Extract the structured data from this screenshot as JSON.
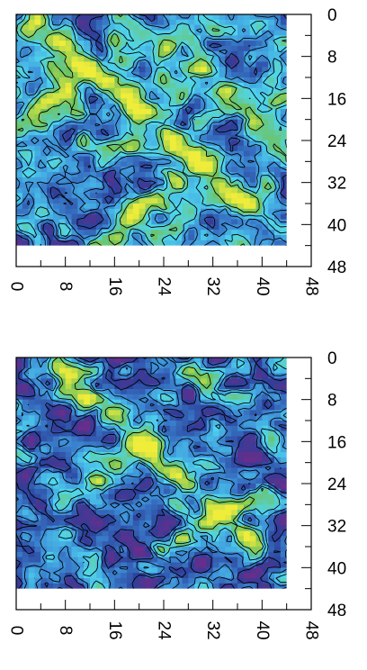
{
  "chart_data": [
    {
      "type": "heatmap",
      "title": "",
      "xlabel": "",
      "ylabel": "",
      "xlim": [
        0,
        48
      ],
      "ylim": [
        0,
        48
      ],
      "y_axis_position": "right",
      "y_axis_inverted": true,
      "x_tick_rotation": 90,
      "x_ticks": [
        "0",
        "8",
        "16",
        "24",
        "32",
        "40",
        "48"
      ],
      "y_ticks": [
        "0",
        "8",
        "16",
        "24",
        "32",
        "40",
        "48"
      ],
      "data_extent": [
        0,
        44
      ],
      "contour_lines": true,
      "colormap": [
        "#6a2d8a",
        "#2c3f9a",
        "#3d8fd8",
        "#4fd6ee",
        "#6fc25a",
        "#f0ec3a"
      ],
      "pattern": "noisy contour field with diagonal ridges",
      "ridges": [
        {
          "from": [
            4,
            2
          ],
          "to": [
            38,
            36
          ],
          "strength": 0.55
        },
        {
          "from": [
            0,
            22
          ],
          "to": [
            10,
            12
          ],
          "strength": 0.45
        },
        {
          "from": [
            14,
            44
          ],
          "to": [
            30,
            28
          ],
          "strength": 0.45
        },
        {
          "from": [
            20,
            2
          ],
          "to": [
            44,
            24
          ],
          "strength": 0.35
        }
      ],
      "level_bias": 0.0
    },
    {
      "type": "heatmap",
      "title": "",
      "xlabel": "",
      "ylabel": "",
      "xlim": [
        0,
        48
      ],
      "ylim": [
        0,
        48
      ],
      "y_axis_position": "right",
      "y_axis_inverted": true,
      "x_tick_rotation": 90,
      "x_ticks": [
        "0",
        "8",
        "16",
        "24",
        "32",
        "40",
        "48"
      ],
      "y_ticks": [
        "0",
        "8",
        "16",
        "24",
        "32",
        "40",
        "48"
      ],
      "data_extent": [
        0,
        44
      ],
      "contour_lines": true,
      "colormap": [
        "#6a2d8a",
        "#2c3f9a",
        "#3d8fd8",
        "#4fd6ee",
        "#6fc25a",
        "#f0ec3a"
      ],
      "pattern": "smoother contour field dominated by blue with diagonal ridges",
      "ridges": [
        {
          "from": [
            6,
            2
          ],
          "to": [
            40,
            36
          ],
          "strength": 0.6
        },
        {
          "from": [
            10,
            26
          ],
          "to": [
            22,
            16
          ],
          "strength": 0.5
        },
        {
          "from": [
            24,
            36
          ],
          "to": [
            40,
            26
          ],
          "strength": 0.45
        },
        {
          "from": [
            28,
            2
          ],
          "to": [
            44,
            18
          ],
          "strength": 0.35
        }
      ],
      "level_bias": -0.18
    }
  ]
}
